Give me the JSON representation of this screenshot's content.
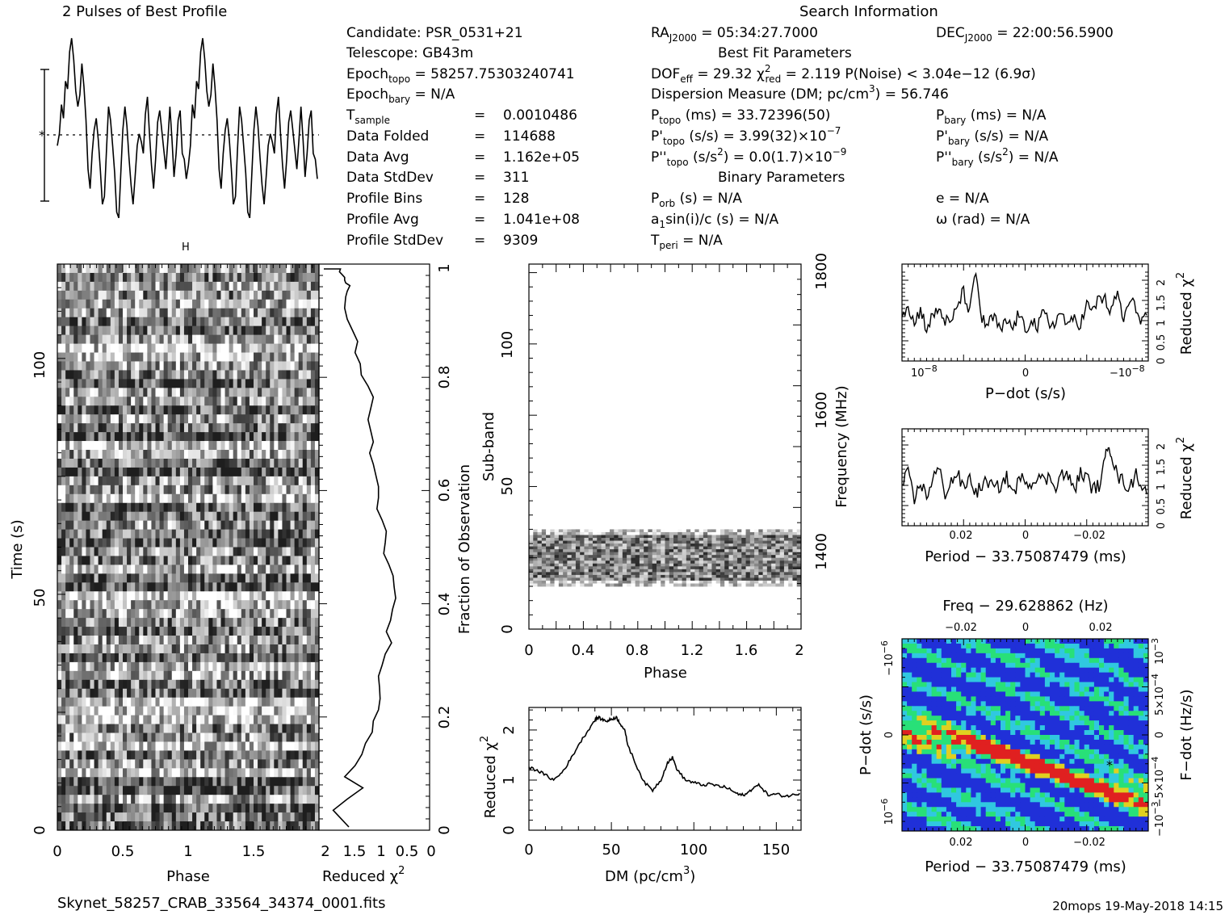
{
  "title": "2 Pulses of Best Profile",
  "search_info_title": "Search Information",
  "filename": "Skynet_58257_CRAB_33564_34374_0001.fits",
  "footer": "20mops 19-May-2018 14:15",
  "info_left": [
    {
      "label": "Candidate:  PSR_0531+21",
      "value": ""
    },
    {
      "label": "Telescope:  GB43m",
      "value": ""
    },
    {
      "label": "Epoch",
      "sub": "topo",
      "value": "= 58257.75303240741"
    },
    {
      "label": "Epoch",
      "sub": "bary",
      "value": "= N/A"
    },
    {
      "label": "T",
      "sub": "sample",
      "value": "0.0010486"
    },
    {
      "label": "Data Folded",
      "value": "114688"
    },
    {
      "label": "Data Avg",
      "value": "1.162e+05"
    },
    {
      "label": "Data StdDev",
      "value": "311"
    },
    {
      "label": "Profile Bins",
      "value": "128"
    },
    {
      "label": "Profile Avg",
      "value": "1.041e+08"
    },
    {
      "label": "Profile StdDev",
      "value": "9309"
    }
  ],
  "info_mid": {
    "ra": "= 05:34:27.7000",
    "dec": "= 22:00:56.5900",
    "best_fit_title": "Best Fit Parameters",
    "dof": "= 29.32",
    "chi2red": "= 2.119",
    "pnoise": "P(Noise) < 3.04e−12  (6.9σ)",
    "dm_line": "Dispersion Measure (DM; pc/cm",
    "dm_value": ") = 56.746",
    "ptopo": "(ms) =  33.72396(50)",
    "pbary": "(ms) = N/A",
    "pdtopo": "(s/s) =  3.99(32)×10",
    "pdtopo_exp": "−7",
    "pdbary": "(s/s) = N/A",
    "pddtopo": "= 0.0(1.7)×10",
    "pddtopo_exp": "−9",
    "pddbary": "= N/A",
    "binary_title": "Binary Parameters",
    "porb": "(s) = N/A",
    "asini": "sin(i)/c (s) = N/A",
    "tperi": "= N/A",
    "ecc": "e = N/A",
    "omega": "ω (rad) = N/A"
  },
  "chart_data": [
    {
      "name": "profile",
      "type": "line",
      "title": "2 Pulses of Best Profile",
      "y_normalized_points": [
        0.42,
        0.48,
        0.63,
        0.56,
        0.75,
        0.71,
        0.9,
        0.97,
        0.86,
        0.7,
        0.62,
        0.68,
        0.84,
        0.72,
        0.55,
        0.3,
        0.2,
        0.38,
        0.5,
        0.56,
        0.45,
        0.3,
        0.12,
        0.16,
        0.4,
        0.62,
        0.55,
        0.42,
        0.28,
        0.08,
        0.05,
        0.28,
        0.5,
        0.62,
        0.52,
        0.36,
        0.22,
        0.12,
        0.26,
        0.42,
        0.48,
        0.44,
        0.38,
        0.58,
        0.67,
        0.48,
        0.32,
        0.2,
        0.35,
        0.54,
        0.6,
        0.5,
        0.4,
        0.3,
        0.45,
        0.62,
        0.45,
        0.26,
        0.38,
        0.55,
        0.6,
        0.38,
        0.35,
        0.25,
        0.32,
        0.42,
        0.63,
        0.56,
        0.75,
        0.71,
        0.9,
        0.97,
        0.86,
        0.7,
        0.62,
        0.68,
        0.84,
        0.72,
        0.55,
        0.3,
        0.2,
        0.38,
        0.5,
        0.56,
        0.45,
        0.3,
        0.12,
        0.16,
        0.4,
        0.62,
        0.55,
        0.42,
        0.28,
        0.08,
        0.05,
        0.28,
        0.5,
        0.62,
        0.52,
        0.36,
        0.22,
        0.12,
        0.26,
        0.42,
        0.48,
        0.44,
        0.38,
        0.58,
        0.67,
        0.48,
        0.32,
        0.2,
        0.35,
        0.54,
        0.6,
        0.5,
        0.4,
        0.3,
        0.45,
        0.62,
        0.45,
        0.26,
        0.38,
        0.55,
        0.6,
        0.38,
        0.35,
        0.25
      ]
    },
    {
      "name": "time_phase",
      "type": "heatmap",
      "xlabel": "Phase",
      "ylabel": "Time (s)",
      "xlim": [
        0,
        2
      ],
      "ylim": [
        0,
        118
      ],
      "xticks": [
        "0",
        "0.5",
        "1",
        "1.5"
      ],
      "yticks": [
        "0",
        "50",
        "100"
      ]
    },
    {
      "name": "time_chi2",
      "type": "line",
      "xlabel": "Reduced χ",
      "xticks": [
        "2",
        "1.5",
        "1",
        "0.5",
        "0"
      ],
      "right_label": "Fraction of Observation",
      "right_ticks": [
        "0",
        "0.2",
        "0.4",
        "0.6",
        "0.8",
        "1"
      ],
      "x": [
        1.52,
        1.82,
        1.55,
        1.25,
        1.6,
        1.4,
        1.27,
        1.2,
        1.07,
        1.05,
        0.95,
        0.92,
        0.93,
        0.95,
        0.88,
        0.82,
        0.7,
        0.8,
        0.72,
        0.68,
        0.62,
        0.65,
        0.67,
        0.75,
        0.85,
        0.82,
        0.8,
        0.88,
        0.98,
        0.95,
        0.95,
        1.0,
        1.05,
        1.12,
        1.05,
        1.1,
        1.15,
        1.1,
        1.05,
        1.15,
        1.28,
        1.3,
        1.4,
        1.35,
        1.45,
        1.55,
        1.6,
        1.58,
        1.55,
        1.5,
        1.58,
        1.6,
        1.6,
        1.65,
        1.7,
        1.68,
        1.72,
        1.75,
        1.78,
        1.8,
        1.85,
        1.8,
        1.85,
        1.9,
        2.0,
        1.95,
        1.98
      ],
      "y": [
        0.0,
        0.03,
        0.05,
        0.07,
        0.09,
        0.11,
        0.13,
        0.15,
        0.17,
        0.19,
        0.21,
        0.23,
        0.25,
        0.27,
        0.29,
        0.31,
        0.33,
        0.35,
        0.37,
        0.39,
        0.41,
        0.43,
        0.45,
        0.47,
        0.49,
        0.51,
        0.53,
        0.55,
        0.57,
        0.59,
        0.61,
        0.63,
        0.65,
        0.67,
        0.69,
        0.71,
        0.73,
        0.75,
        0.77,
        0.79,
        0.81,
        0.83,
        0.85,
        0.87,
        0.89,
        0.91,
        0.93,
        0.95,
        0.96,
        0.97,
        0.975,
        0.98,
        0.985,
        0.99,
        0.995,
        1.0,
        1.0,
        1.0,
        1.0,
        1.0,
        1.0,
        1.0,
        1.0,
        1.0,
        1.0,
        1.0,
        1.0
      ]
    },
    {
      "name": "subband_phase",
      "type": "heatmap",
      "xlabel": "Phase",
      "ylabel": "Sub-band",
      "xticks": [
        "0",
        "0.4",
        "0.8",
        "1.2",
        "1.6",
        "2"
      ],
      "yticks": [
        "0",
        "50",
        "100"
      ],
      "right_label": "Frequency (MHz)",
      "right_ticks": [
        "1400",
        "1600",
        "1800"
      ],
      "band_range": [
        15,
        35
      ]
    },
    {
      "name": "dm_chi2",
      "type": "line",
      "xlabel": "DM (pc/cm",
      "ylabel": "Reduced χ",
      "xticks": [
        "0",
        "50",
        "100",
        "150"
      ],
      "yticks": [
        "0",
        "1",
        "2"
      ],
      "xlim": [
        0,
        165
      ],
      "ylim": [
        0,
        2.45
      ],
      "x": [
        0,
        5,
        10,
        15,
        20,
        25,
        30,
        35,
        40,
        42,
        45,
        48,
        50,
        53,
        55,
        58,
        60,
        65,
        70,
        75,
        80,
        84,
        87,
        90,
        95,
        100,
        105,
        110,
        115,
        120,
        125,
        128,
        132,
        136,
        140,
        145,
        150,
        155,
        160,
        165
      ],
      "y": [
        1.25,
        1.2,
        1.1,
        1.0,
        1.15,
        1.4,
        1.7,
        1.95,
        2.2,
        2.25,
        2.2,
        2.18,
        2.22,
        2.25,
        2.15,
        2.0,
        1.7,
        1.3,
        0.95,
        0.8,
        1.0,
        1.35,
        1.45,
        1.2,
        1.0,
        0.95,
        0.9,
        0.92,
        0.88,
        0.85,
        0.75,
        0.7,
        0.72,
        0.85,
        0.9,
        0.7,
        0.72,
        0.68,
        0.7,
        0.75
      ]
    },
    {
      "name": "pdot_chi2",
      "type": "line",
      "xlabel": "P−dot (s/s)",
      "ylabel": "Reduced χ",
      "yticks": [
        "0",
        "0.5",
        "1",
        "1.5",
        "2"
      ],
      "xlim": [
        -1,
        1
      ],
      "ylim": [
        0,
        2.4
      ],
      "x": [
        -1.0,
        -0.95,
        -0.9,
        -0.85,
        -0.8,
        -0.75,
        -0.7,
        -0.65,
        -0.6,
        -0.55,
        -0.5,
        -0.45,
        -0.4,
        -0.35,
        -0.3,
        -0.25,
        -0.2,
        -0.15,
        -0.1,
        -0.05,
        0.0,
        0.05,
        0.1,
        0.15,
        0.2,
        0.25,
        0.3,
        0.35,
        0.4,
        0.45,
        0.5,
        0.55,
        0.6,
        0.65,
        0.7,
        0.75,
        0.8,
        0.85,
        0.9,
        0.95,
        1.0
      ],
      "y": [
        1.2,
        1.4,
        0.9,
        1.3,
        0.8,
        1.1,
        1.3,
        1.0,
        0.9,
        1.4,
        1.7,
        1.2,
        2.2,
        1.0,
        0.9,
        1.1,
        0.7,
        1.0,
        0.8,
        1.2,
        0.7,
        1.1,
        0.8,
        1.2,
        0.9,
        1.0,
        1.2,
        0.8,
        1.1,
        0.9,
        1.4,
        1.2,
        1.6,
        1.5,
        1.2,
        1.7,
        1.0,
        1.5,
        1.3,
        1.0,
        1.2
      ],
      "xticks": [
        "10",
        "0",
        "−10"
      ]
    },
    {
      "name": "period_chi2",
      "type": "line",
      "xlabel": "Period − 33.75087479 (ms)",
      "ylabel": "Reduced χ",
      "xticks": [
        "0.02",
        "0",
        "−0.02"
      ],
      "yticks": [
        "0",
        "0.5",
        "1",
        "1.5",
        "2"
      ],
      "xlim": [
        0.04,
        -0.04
      ],
      "ylim": [
        0,
        2.4
      ],
      "x": [
        0.04,
        0.038,
        0.036,
        0.034,
        0.032,
        0.03,
        0.028,
        0.026,
        0.024,
        0.022,
        0.02,
        0.018,
        0.016,
        0.014,
        0.012,
        0.01,
        0.008,
        0.006,
        0.004,
        0.002,
        0.0,
        -0.002,
        -0.004,
        -0.006,
        -0.008,
        -0.01,
        -0.012,
        -0.014,
        -0.016,
        -0.018,
        -0.02,
        -0.022,
        -0.024,
        -0.026,
        -0.027,
        -0.028,
        -0.03,
        -0.032,
        -0.034,
        -0.036,
        -0.038,
        -0.04
      ],
      "y": [
        1.0,
        1.3,
        0.6,
        1.1,
        0.7,
        1.2,
        1.4,
        0.8,
        1.1,
        1.3,
        0.9,
        1.2,
        0.8,
        1.0,
        1.1,
        0.9,
        1.0,
        1.2,
        0.8,
        1.1,
        1.2,
        1.0,
        1.3,
        1.1,
        1.2,
        1.0,
        1.3,
        1.2,
        0.9,
        1.3,
        1.2,
        0.9,
        1.0,
        1.6,
        2.1,
        1.8,
        1.2,
        1.1,
        0.9,
        1.3,
        1.0,
        0.8
      ]
    },
    {
      "name": "ppdot_plane",
      "type": "heatmap",
      "title": "Freq − 29.628862 (Hz)",
      "xlabel": "Period − 33.75087479 (ms)",
      "ylabel": "P−dot (s/s)",
      "right_label": "F−dot (Hz/s)",
      "xticks": [
        "0.02",
        "0",
        "−0.02"
      ],
      "top_ticks": [
        "−0.02",
        "0",
        "0.02"
      ]
    }
  ],
  "colors": {
    "ppdot_low": "#2030d8",
    "ppdot_mid": "#28e078",
    "ppdot_high": "#e02020"
  }
}
